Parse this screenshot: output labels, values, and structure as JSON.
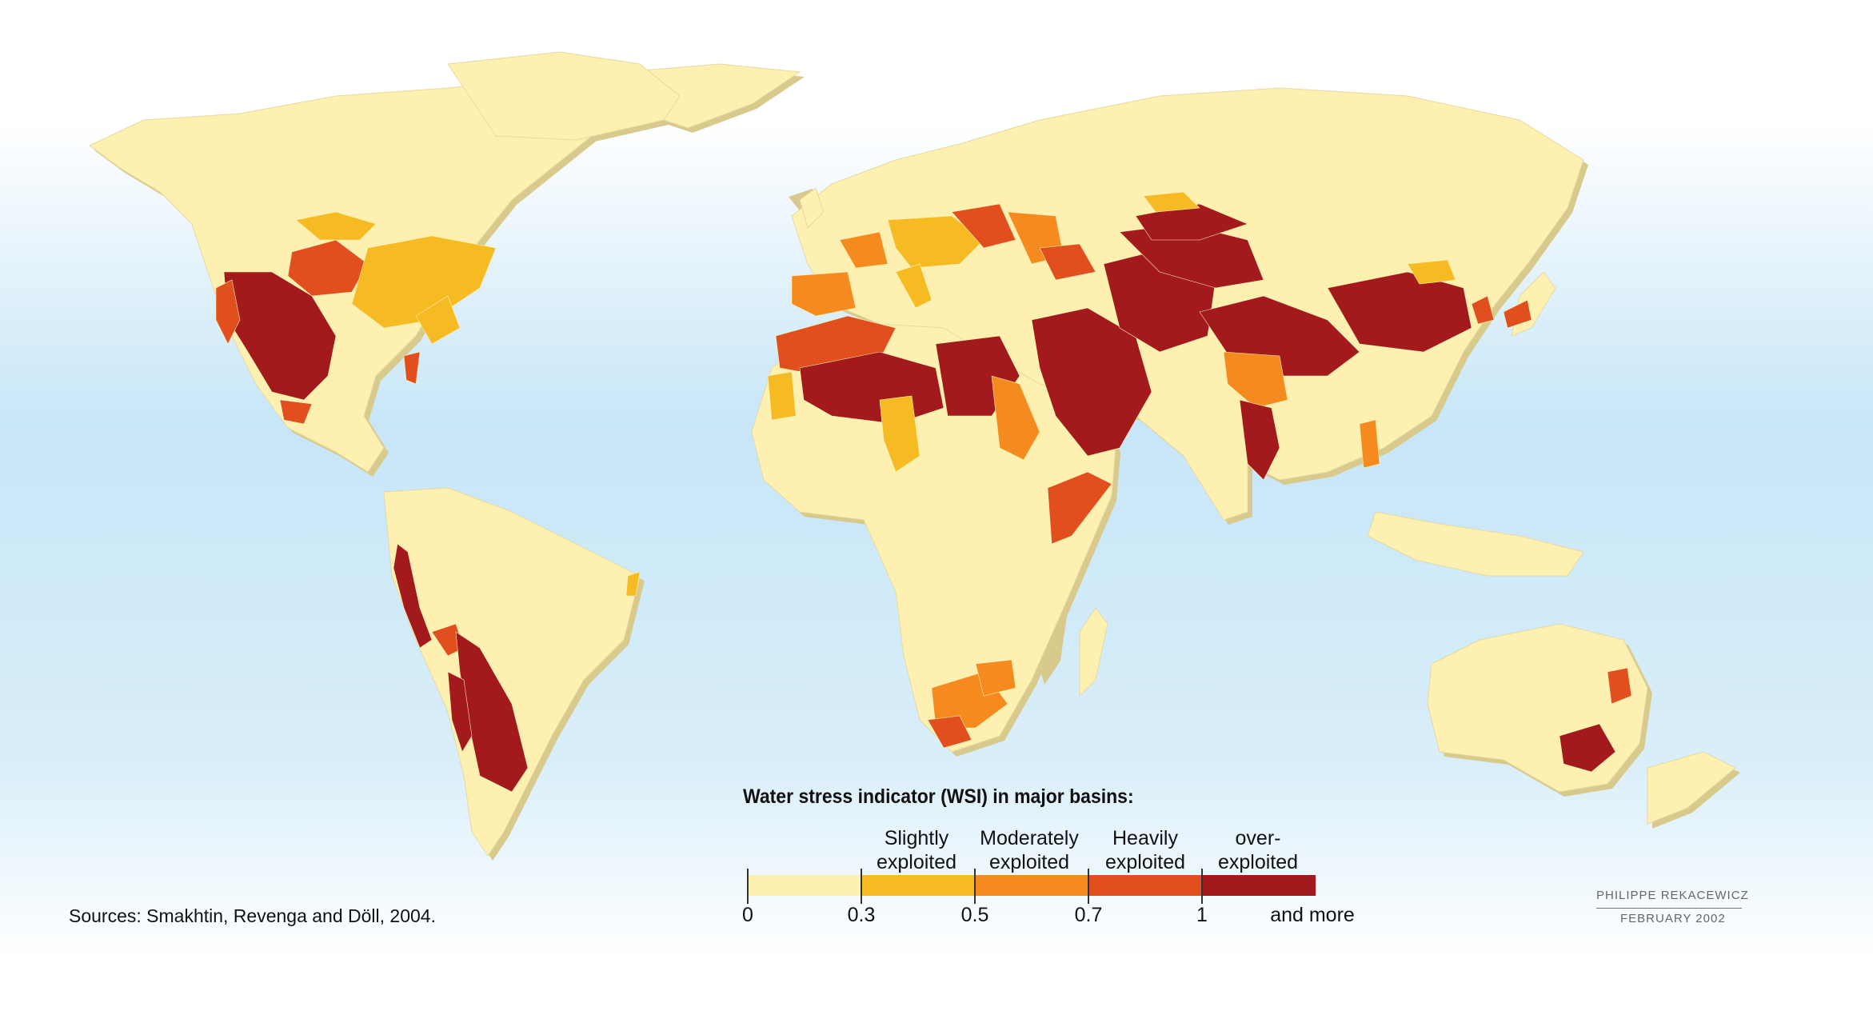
{
  "colors": {
    "ocean_top": "#ffffff",
    "ocean_mid": "#c7e6f7",
    "land_base": "#fdf0b0",
    "land_shadow": "#d8c98c",
    "cat0": "#fdf0b0",
    "cat1": "#f6bb22",
    "cat2": "#f58a1f",
    "cat3": "#e24f1e",
    "cat4": "#a31a1c"
  },
  "legend": {
    "title": "Water stress indicator (WSI) in major basins:",
    "categories": [
      {
        "label": "",
        "color": "#fdf0b0"
      },
      {
        "label": "Slightly exploited",
        "color": "#f6bb22"
      },
      {
        "label": "Moderately exploited",
        "color": "#f58a1f"
      },
      {
        "label": "Heavily exploited",
        "color": "#e24f1e"
      },
      {
        "label": "over- exploited",
        "color": "#a31a1c"
      }
    ],
    "ticks": [
      "0",
      "0.3",
      "0.5",
      "0.7",
      "1",
      "and more"
    ]
  },
  "sources": "Sources:  Smakhtin, Revenga and Döll, 2004.",
  "credit": {
    "author": "PHILIPPE REKACEWICZ",
    "date": "FEBRUARY 2002"
  }
}
